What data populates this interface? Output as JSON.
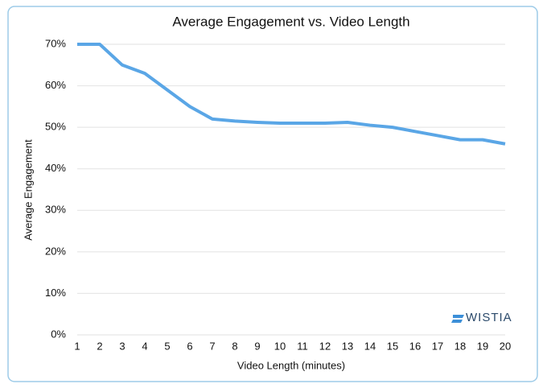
{
  "chart_data": {
    "type": "line",
    "title": "Average Engagement vs. Video Length",
    "x_label": "Video Length (minutes)",
    "y_label": "Average Engagement",
    "x": [
      1,
      2,
      3,
      4,
      5,
      6,
      7,
      8,
      9,
      10,
      11,
      12,
      13,
      14,
      15,
      16,
      17,
      18,
      19,
      20
    ],
    "series": [
      {
        "name": "Average Engagement",
        "color": "#5aa6e6",
        "values": [
          70,
          70,
          65,
          63,
          59,
          55,
          52,
          51.5,
          51.2,
          51,
          51,
          51,
          51.2,
          50.5,
          50,
          49,
          48,
          47,
          47,
          46
        ]
      }
    ],
    "xlim": [
      1,
      20
    ],
    "xticks": [
      1,
      2,
      3,
      4,
      5,
      6,
      7,
      8,
      9,
      10,
      11,
      12,
      13,
      14,
      15,
      16,
      17,
      18,
      19,
      20
    ],
    "ylim": [
      0,
      70
    ],
    "yticks": [
      {
        "value": 0,
        "label": "0%"
      },
      {
        "value": 10,
        "label": "10%"
      },
      {
        "value": 20,
        "label": "20%"
      },
      {
        "value": 30,
        "label": "30%"
      },
      {
        "value": 40,
        "label": "40%"
      },
      {
        "value": 50,
        "label": "50%"
      },
      {
        "value": 60,
        "label": "60%"
      },
      {
        "value": 70,
        "label": "70%"
      }
    ],
    "grid": true,
    "logo": "WISTIA"
  }
}
